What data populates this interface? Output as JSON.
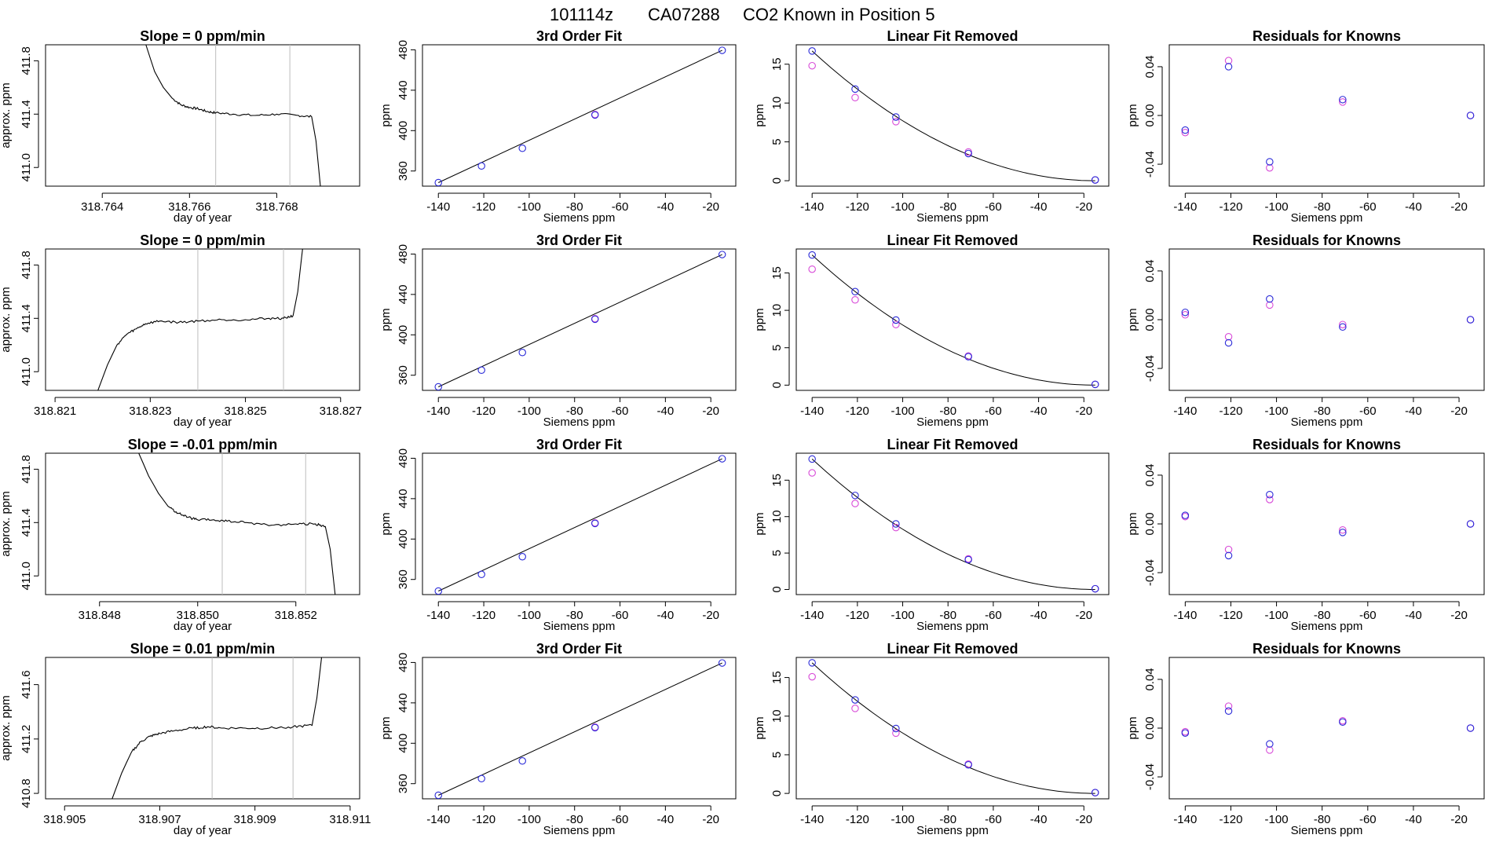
{
  "main_title": {
    "date": "101114z",
    "tank": "CA07288",
    "description": "CO2 Known in Position  5"
  },
  "colors": {
    "axis": "#000000",
    "trace": "#000000",
    "window_lines": "#bdbdbd",
    "series_blue": "#2a2ad8",
    "series_magenta": "#d84ad8",
    "series_cyan": "#3aa0d8",
    "fit_line": "#000000"
  },
  "chart_data": [
    {
      "row": 1,
      "type": "line",
      "title": "Slope =  0  ppm/min",
      "xlabel": "day of year",
      "ylabel": "approx. ppm",
      "xlim": [
        318.7627,
        318.7699
      ],
      "ylim": [
        410.86,
        411.92
      ],
      "xticks": [
        "318.764",
        "318.766",
        "318.768"
      ],
      "yticks": [
        "411.0",
        "411.4",
        "411.8"
      ],
      "window": [
        318.7666,
        318.7683
      ],
      "x": [
        318.765,
        318.7652,
        318.7654,
        318.7656,
        318.7658,
        318.766,
        318.7662,
        318.7664,
        318.7666,
        318.767,
        318.7675,
        318.768,
        318.7685,
        318.7688,
        318.7689,
        318.769
      ],
      "y": [
        411.92,
        411.72,
        411.6,
        411.52,
        411.47,
        411.45,
        411.44,
        411.42,
        411.41,
        411.4,
        411.39,
        411.4,
        411.39,
        411.38,
        411.2,
        410.86
      ]
    },
    {
      "row": 1,
      "type": "scatter",
      "title": "3rd Order Fit",
      "xlabel": "Siemens ppm",
      "ylabel": "ppm",
      "xlim": [
        -147,
        -9
      ],
      "ylim": [
        345,
        485
      ],
      "xticks": [
        "-140",
        "-120",
        "-100",
        "-80",
        "-60",
        "-40",
        "-20"
      ],
      "yticks": [
        "360",
        "400",
        "440",
        "480"
      ],
      "series": [
        {
          "color": "#2a2ad8",
          "x": [
            -140,
            -121,
            -103,
            -71,
            -15
          ],
          "y": [
            348.5,
            365,
            382.5,
            415.5,
            479.5
          ]
        },
        {
          "color": "#d84ad8",
          "x": [
            -71
          ],
          "y": [
            416
          ]
        }
      ],
      "fit": {
        "x": [
          -140,
          -15
        ],
        "y": [
          348.5,
          479.5
        ]
      }
    },
    {
      "row": 1,
      "type": "scatter",
      "title": "Linear Fit Removed",
      "xlabel": "Siemens ppm",
      "ylabel": "ppm",
      "xlim": [
        -147,
        -9
      ],
      "ylim": [
        -0.7,
        17.5
      ],
      "xticks": [
        "-140",
        "-120",
        "-100",
        "-80",
        "-60",
        "-40",
        "-20"
      ],
      "yticks": [
        "0",
        "5",
        "10",
        "15"
      ],
      "series": [
        {
          "color": "#2a2ad8",
          "x": [
            -140,
            -121,
            -103,
            -71,
            -15
          ],
          "y": [
            16.7,
            11.8,
            8.2,
            3.5,
            0.1
          ]
        },
        {
          "color": "#d84ad8",
          "x": [
            -140,
            -121,
            -103,
            -71,
            -15
          ],
          "y": [
            14.8,
            10.7,
            7.6,
            3.7,
            0.1
          ]
        }
      ],
      "fit": {
        "a": 16.7,
        "x0": -140,
        "x1": -15
      }
    },
    {
      "row": 1,
      "type": "scatter",
      "title": "Residuals for Knowns",
      "xlabel": "Siemens ppm",
      "ylabel": "ppm",
      "xlim": [
        -147,
        -9
      ],
      "ylim": [
        -0.058,
        0.058
      ],
      "xticks": [
        "-140",
        "-120",
        "-100",
        "-80",
        "-60",
        "-40",
        "-20"
      ],
      "yticks": [
        "-0.04",
        "0.00",
        "0.04"
      ],
      "series": [
        {
          "color": "#2a2ad8",
          "x": [
            -140,
            -121,
            -103,
            -71,
            -15
          ],
          "y": [
            -0.012,
            0.04,
            -0.038,
            0.013,
            0.0
          ]
        },
        {
          "color": "#d84ad8",
          "x": [
            -140,
            -121,
            -103,
            -71,
            -15
          ],
          "y": [
            -0.014,
            0.045,
            -0.043,
            0.011,
            0.0
          ]
        }
      ]
    },
    {
      "row": 2,
      "type": "line",
      "title": "Slope =  0  ppm/min",
      "xlabel": "day of year",
      "ylabel": "approx. ppm",
      "xlim": [
        318.8208,
        318.8274
      ],
      "ylim": [
        410.86,
        411.92
      ],
      "xticks": [
        "318.821",
        "318.823",
        "318.825",
        "318.827"
      ],
      "yticks": [
        "411.0",
        "411.4",
        "411.8"
      ],
      "window": [
        318.824,
        318.8258
      ],
      "x": [
        318.8219,
        318.8221,
        318.8223,
        318.8225,
        318.8227,
        318.8229,
        318.8232,
        318.8236,
        318.824,
        318.8245,
        318.825,
        318.8255,
        318.8258,
        318.826,
        318.8261,
        318.8262
      ],
      "y": [
        410.86,
        411.05,
        411.2,
        411.28,
        411.32,
        411.36,
        411.38,
        411.37,
        411.38,
        411.39,
        411.39,
        411.4,
        411.4,
        411.42,
        411.6,
        411.92
      ]
    },
    {
      "row": 2,
      "type": "scatter",
      "title": "3rd Order Fit",
      "xlabel": "Siemens ppm",
      "ylabel": "ppm",
      "xlim": [
        -147,
        -9
      ],
      "ylim": [
        345,
        485
      ],
      "xticks": [
        "-140",
        "-120",
        "-100",
        "-80",
        "-60",
        "-40",
        "-20"
      ],
      "yticks": [
        "360",
        "400",
        "440",
        "480"
      ],
      "series": [
        {
          "color": "#2a2ad8",
          "x": [
            -140,
            -121,
            -103,
            -71,
            -15
          ],
          "y": [
            348.5,
            365,
            382.5,
            415.5,
            479.5
          ]
        },
        {
          "color": "#d84ad8",
          "x": [
            -71
          ],
          "y": [
            416
          ]
        }
      ],
      "fit": {
        "x": [
          -140,
          -15
        ],
        "y": [
          348.5,
          479.5
        ]
      }
    },
    {
      "row": 2,
      "type": "scatter",
      "title": "Linear Fit Removed",
      "xlabel": "Siemens ppm",
      "ylabel": "ppm",
      "xlim": [
        -147,
        -9
      ],
      "ylim": [
        -0.7,
        18.2
      ],
      "xticks": [
        "-140",
        "-120",
        "-100",
        "-80",
        "-60",
        "-40",
        "-20"
      ],
      "yticks": [
        "0",
        "5",
        "10",
        "15"
      ],
      "series": [
        {
          "color": "#2a2ad8",
          "x": [
            -140,
            -121,
            -103,
            -71,
            -15
          ],
          "y": [
            17.4,
            12.5,
            8.7,
            3.8,
            0.1
          ]
        },
        {
          "color": "#d84ad8",
          "x": [
            -140,
            -121,
            -103,
            -71,
            -15
          ],
          "y": [
            15.5,
            11.4,
            8.1,
            3.9,
            0.1
          ]
        }
      ],
      "fit": {
        "a": 17.4,
        "x0": -140,
        "x1": -15
      }
    },
    {
      "row": 2,
      "type": "scatter",
      "title": "Residuals for Knowns",
      "xlabel": "Siemens ppm",
      "ylabel": "ppm",
      "xlim": [
        -147,
        -9
      ],
      "ylim": [
        -0.058,
        0.058
      ],
      "xticks": [
        "-140",
        "-120",
        "-100",
        "-80",
        "-60",
        "-40",
        "-20"
      ],
      "yticks": [
        "-0.04",
        "0.00",
        "0.04"
      ],
      "series": [
        {
          "color": "#2a2ad8",
          "x": [
            -140,
            -121,
            -103,
            -71,
            -15
          ],
          "y": [
            0.006,
            -0.019,
            0.017,
            -0.006,
            0.0
          ]
        },
        {
          "color": "#d84ad8",
          "x": [
            -140,
            -121,
            -103,
            -71,
            -15
          ],
          "y": [
            0.004,
            -0.014,
            0.012,
            -0.004,
            0.0
          ]
        }
      ]
    },
    {
      "row": 3,
      "type": "line",
      "title": "Slope =  -0.01  ppm/min",
      "xlabel": "day of year",
      "ylabel": "approx. ppm",
      "xlim": [
        318.8469,
        318.8533
      ],
      "ylim": [
        410.86,
        411.92
      ],
      "xticks": [
        "318.848",
        "318.850",
        "318.852"
      ],
      "yticks": [
        "411.0",
        "411.4",
        "411.8"
      ],
      "window": [
        318.8505,
        318.8522
      ],
      "x": [
        318.8488,
        318.849,
        318.8492,
        318.8494,
        318.8496,
        318.8498,
        318.85,
        318.8503,
        318.8506,
        318.851,
        318.8515,
        318.852,
        318.8524,
        318.8526,
        318.8527,
        318.8528
      ],
      "y": [
        411.92,
        411.75,
        411.62,
        411.52,
        411.47,
        411.44,
        411.42,
        411.42,
        411.41,
        411.4,
        411.38,
        411.39,
        411.39,
        411.37,
        411.2,
        410.86
      ]
    },
    {
      "row": 3,
      "type": "scatter",
      "title": "3rd Order Fit",
      "xlabel": "Siemens ppm",
      "ylabel": "ppm",
      "xlim": [
        -147,
        -9
      ],
      "ylim": [
        345,
        485
      ],
      "xticks": [
        "-140",
        "-120",
        "-100",
        "-80",
        "-60",
        "-40",
        "-20"
      ],
      "yticks": [
        "360",
        "400",
        "440",
        "480"
      ],
      "series": [
        {
          "color": "#2a2ad8",
          "x": [
            -140,
            -121,
            -103,
            -71,
            -15
          ],
          "y": [
            348.5,
            365,
            382.5,
            415.5,
            479.5
          ]
        },
        {
          "color": "#d84ad8",
          "x": [
            -71
          ],
          "y": [
            416
          ]
        }
      ],
      "fit": {
        "x": [
          -140,
          -15
        ],
        "y": [
          348.5,
          479.5
        ]
      }
    },
    {
      "row": 3,
      "type": "scatter",
      "title": "Linear Fit Removed",
      "xlabel": "Siemens ppm",
      "ylabel": "ppm",
      "xlim": [
        -147,
        -9
      ],
      "ylim": [
        -0.7,
        18.7
      ],
      "xticks": [
        "-140",
        "-120",
        "-100",
        "-80",
        "-60",
        "-40",
        "-20"
      ],
      "yticks": [
        "0",
        "5",
        "10",
        "15"
      ],
      "series": [
        {
          "color": "#2a2ad8",
          "x": [
            -140,
            -121,
            -103,
            -71,
            -15
          ],
          "y": [
            17.9,
            12.9,
            9.0,
            4.1,
            0.1
          ]
        },
        {
          "color": "#d84ad8",
          "x": [
            -140,
            -121,
            -103,
            -71,
            -15
          ],
          "y": [
            16.0,
            11.8,
            8.5,
            4.2,
            0.1
          ]
        }
      ],
      "fit": {
        "a": 17.9,
        "x0": -140,
        "x1": -15
      }
    },
    {
      "row": 3,
      "type": "scatter",
      "title": "Residuals for Knowns",
      "xlabel": "Siemens ppm",
      "ylabel": "ppm",
      "xlim": [
        -147,
        -9
      ],
      "ylim": [
        -0.058,
        0.058
      ],
      "xticks": [
        "-140",
        "-120",
        "-100",
        "-80",
        "-60",
        "-40",
        "-20"
      ],
      "yticks": [
        "-0.04",
        "0.00",
        "0.04"
      ],
      "series": [
        {
          "color": "#2a2ad8",
          "x": [
            -140,
            -121,
            -103,
            -71,
            -15
          ],
          "y": [
            0.007,
            -0.026,
            0.024,
            -0.007,
            0.0
          ]
        },
        {
          "color": "#d84ad8",
          "x": [
            -140,
            -121,
            -103,
            -71,
            -15
          ],
          "y": [
            0.006,
            -0.021,
            0.02,
            -0.005,
            0.0
          ]
        }
      ]
    },
    {
      "row": 4,
      "type": "line",
      "title": "Slope =  0.01  ppm/min",
      "xlabel": "day of year",
      "ylabel": "approx. ppm",
      "xlim": [
        318.9046,
        318.9112
      ],
      "ylim": [
        410.76,
        411.8
      ],
      "xticks": [
        "318.905",
        "318.907",
        "318.909",
        "318.911"
      ],
      "yticks": [
        "410.8",
        "411.2",
        "411.6"
      ],
      "window": [
        318.9081,
        318.9098
      ],
      "x": [
        318.906,
        318.9062,
        318.9064,
        318.9066,
        318.9068,
        318.907,
        318.9073,
        318.9077,
        318.908,
        318.9083,
        318.9088,
        318.9093,
        318.9098,
        318.9102,
        318.9103,
        318.9104
      ],
      "y": [
        410.76,
        410.95,
        411.1,
        411.18,
        411.22,
        411.24,
        411.26,
        411.28,
        411.29,
        411.28,
        411.28,
        411.28,
        411.29,
        411.3,
        411.5,
        411.8
      ]
    },
    {
      "row": 4,
      "type": "scatter",
      "title": "3rd Order Fit",
      "xlabel": "Siemens ppm",
      "ylabel": "ppm",
      "xlim": [
        -147,
        -9
      ],
      "ylim": [
        345,
        485
      ],
      "xticks": [
        "-140",
        "-120",
        "-100",
        "-80",
        "-60",
        "-40",
        "-20"
      ],
      "yticks": [
        "360",
        "400",
        "440",
        "480"
      ],
      "series": [
        {
          "color": "#2a2ad8",
          "x": [
            -140,
            -121,
            -103,
            -71,
            -15
          ],
          "y": [
            348.5,
            365,
            382.5,
            415.5,
            479.5
          ]
        },
        {
          "color": "#d84ad8",
          "x": [
            -71
          ],
          "y": [
            416
          ]
        }
      ],
      "fit": {
        "x": [
          -140,
          -15
        ],
        "y": [
          348.5,
          479.5
        ]
      }
    },
    {
      "row": 4,
      "type": "scatter",
      "title": "Linear Fit Removed",
      "xlabel": "Siemens ppm",
      "ylabel": "ppm",
      "xlim": [
        -147,
        -9
      ],
      "ylim": [
        -0.7,
        17.6
      ],
      "xticks": [
        "-140",
        "-120",
        "-100",
        "-80",
        "-60",
        "-40",
        "-20"
      ],
      "yticks": [
        "0",
        "5",
        "10",
        "15"
      ],
      "series": [
        {
          "color": "#2a2ad8",
          "x": [
            -140,
            -121,
            -103,
            -71,
            -15
          ],
          "y": [
            16.9,
            12.1,
            8.4,
            3.7,
            0.1
          ]
        },
        {
          "color": "#d84ad8",
          "x": [
            -140,
            -121,
            -103,
            -71,
            -15
          ],
          "y": [
            15.1,
            11.0,
            7.8,
            3.8,
            0.1
          ]
        }
      ],
      "fit": {
        "a": 16.9,
        "x0": -140,
        "x1": -15
      }
    },
    {
      "row": 4,
      "type": "scatter",
      "title": "Residuals for Knowns",
      "xlabel": "Siemens ppm",
      "ylabel": "ppm",
      "xlim": [
        -147,
        -9
      ],
      "ylim": [
        -0.058,
        0.058
      ],
      "xticks": [
        "-140",
        "-120",
        "-100",
        "-80",
        "-60",
        "-40",
        "-20"
      ],
      "yticks": [
        "-0.04",
        "0.00",
        "0.04"
      ],
      "series": [
        {
          "color": "#2a2ad8",
          "x": [
            -140,
            -121,
            -103,
            -71,
            -15
          ],
          "y": [
            -0.004,
            0.014,
            -0.013,
            0.005,
            0.0
          ]
        },
        {
          "color": "#d84ad8",
          "x": [
            -140,
            -121,
            -103,
            -71,
            -15
          ],
          "y": [
            -0.003,
            0.018,
            -0.018,
            0.006,
            0.0
          ]
        }
      ]
    }
  ]
}
